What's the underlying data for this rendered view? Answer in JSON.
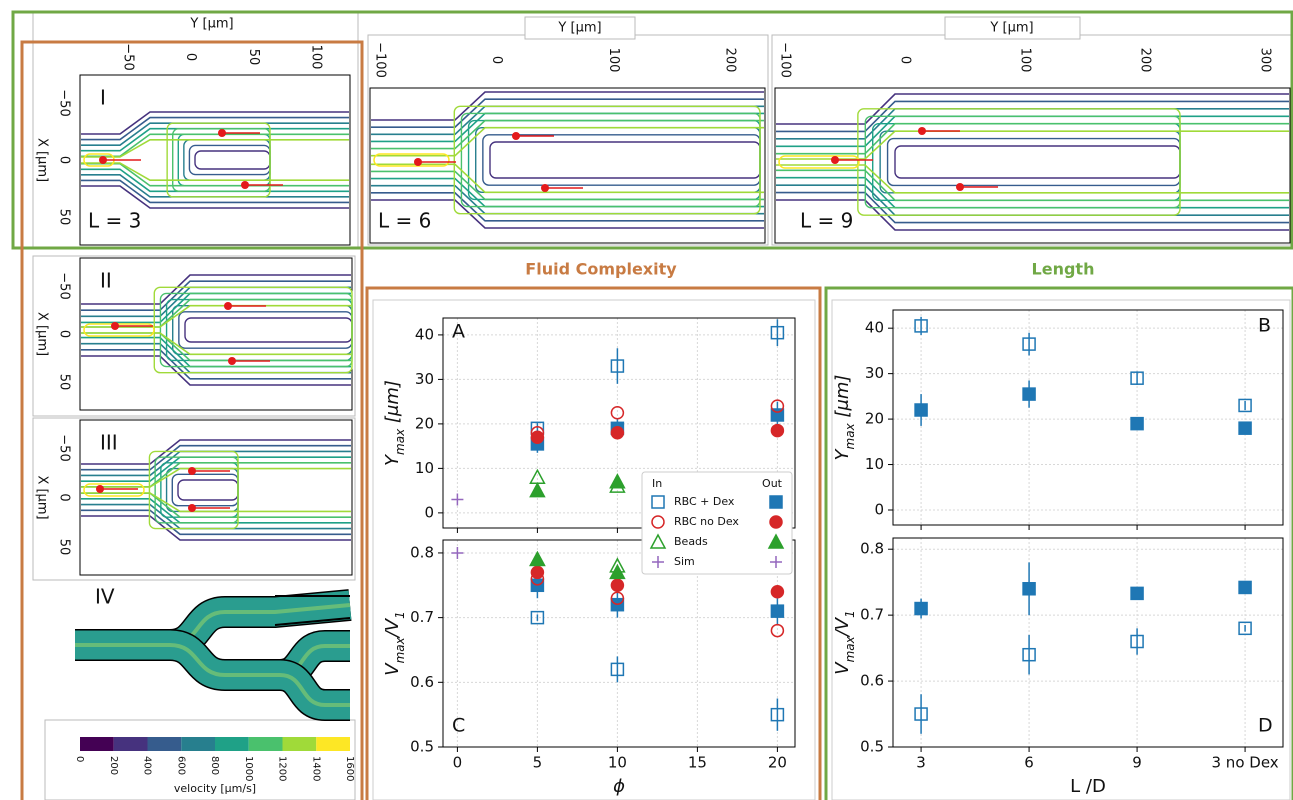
{
  "headings": {
    "fluid": "Fluid Complexity",
    "length": "Length"
  },
  "panels": {
    "I": {
      "label": "I",
      "length": "L = 3",
      "y_axis": "Y [μm]",
      "y_ticks": [
        "−50",
        "0",
        "50",
        "100"
      ],
      "x_axis": "X [μm]",
      "x_ticks": [
        "−50",
        "0",
        "50"
      ]
    },
    "L6": {
      "length": "L = 6",
      "y_axis": "Y [μm]",
      "y_ticks": [
        "−100",
        "0",
        "100",
        "200"
      ]
    },
    "L9": {
      "length": "L = 9",
      "y_axis": "Y [μm]",
      "y_ticks": [
        "−100",
        "0",
        "100",
        "200",
        "300"
      ]
    },
    "II": {
      "label": "II",
      "x_axis": "X [μm]",
      "x_ticks": [
        "−50",
        "0",
        "50"
      ]
    },
    "III": {
      "label": "III",
      "x_axis": "X [μm]",
      "x_ticks": [
        "−50",
        "0",
        "50"
      ]
    },
    "IV": {
      "label": "IV"
    },
    "colorbar": {
      "label": "velocity [μm/s]",
      "ticks": [
        0,
        200,
        400,
        600,
        800,
        1000,
        1200,
        1400,
        1600
      ]
    }
  },
  "chart_data": [
    {
      "type": "scatter",
      "panel": "A",
      "ylabel": [
        "Y",
        "max",
        " [μm]"
      ],
      "x": [
        0,
        5,
        10,
        20
      ],
      "xlim": [
        -0.9,
        21.1
      ],
      "xticks": [
        0,
        5,
        10,
        15,
        20
      ],
      "xtick_labels": false,
      "ylim": [
        -3.4,
        43.8
      ],
      "yticks": [
        0,
        10,
        20,
        30,
        40
      ],
      "grid": true,
      "legend": true,
      "legend_columns": [
        "In",
        "Out"
      ],
      "series": [
        {
          "name": "RBC + Dex",
          "color": "#1f77b4",
          "marker": "square",
          "in_values": [
            null,
            19,
            33,
            40.5
          ],
          "in_errors": [
            null,
            1.5,
            4,
            3
          ],
          "out_values": [
            null,
            15.5,
            19,
            22
          ],
          "out_errors": [
            null,
            2,
            2,
            3
          ]
        },
        {
          "name": "RBC no Dex",
          "color": "#d62728",
          "marker": "circle",
          "in_values": [
            null,
            18,
            22.5,
            24
          ],
          "in_errors": [
            null,
            null,
            null,
            null
          ],
          "out_values": [
            null,
            17,
            18,
            18.5
          ],
          "out_errors": [
            null,
            null,
            null,
            null
          ]
        },
        {
          "name": "Beads",
          "color": "#2ca02c",
          "marker": "triangle",
          "in_values": [
            null,
            8,
            6,
            null
          ],
          "in_errors": [
            null,
            null,
            null,
            null
          ],
          "out_values": [
            null,
            5,
            7,
            null
          ],
          "out_errors": [
            null,
            null,
            null,
            null
          ]
        },
        {
          "name": "Sim",
          "color": "#9467bd",
          "marker": "plus",
          "in_values": [
            3,
            null,
            null,
            null
          ],
          "in_errors": [
            null,
            null,
            null,
            null
          ],
          "out_values": [
            null,
            null,
            null,
            null
          ],
          "out_errors": [
            null,
            null,
            null,
            null
          ]
        }
      ]
    },
    {
      "type": "scatter",
      "panel": "B",
      "ylabel": [
        "Y",
        "max",
        " [μm]"
      ],
      "categories": [
        "3",
        "6",
        "9",
        "3 no Dex"
      ],
      "ylim": [
        -3.3,
        44
      ],
      "yticks": [
        0,
        10,
        20,
        30,
        40
      ],
      "grid": true,
      "xtick_labels": false,
      "series": [
        {
          "name": "RBC + Dex",
          "color": "#1f77b4",
          "marker": "square",
          "in_values": [
            40.5,
            36.5,
            29,
            23
          ],
          "in_errors": [
            2,
            2.5,
            1.5,
            1
          ],
          "out_values": [
            22,
            25.5,
            19,
            18
          ],
          "out_errors": [
            3.5,
            3,
            1,
            1
          ]
        }
      ]
    },
    {
      "type": "scatter",
      "panel": "C",
      "ylabel": [
        "V",
        "max",
        "/V",
        "1"
      ],
      "xlabel": "ϕ",
      "x": [
        0,
        5,
        10,
        20
      ],
      "xlim": [
        -0.9,
        21.1
      ],
      "xticks": [
        0,
        5,
        10,
        15,
        20
      ],
      "ylim": [
        0.5,
        0.82
      ],
      "yticks": [
        0.5,
        0.6,
        0.7,
        0.8
      ],
      "grid": true,
      "series": [
        {
          "name": "RBC + Dex",
          "color": "#1f77b4",
          "marker": "square",
          "in_values": [
            null,
            0.7,
            0.62,
            0.55
          ],
          "in_errors": [
            null,
            0.005,
            0.02,
            0.025
          ],
          "out_values": [
            null,
            0.75,
            0.72,
            0.71
          ],
          "out_errors": [
            null,
            0.02,
            0.02,
            0.02
          ]
        },
        {
          "name": "RBC no Dex",
          "color": "#d62728",
          "marker": "circle",
          "in_values": [
            null,
            0.76,
            0.73,
            0.68
          ],
          "in_errors": [
            null,
            null,
            null,
            null
          ],
          "out_values": [
            null,
            0.77,
            0.75,
            0.74
          ],
          "out_errors": [
            null,
            null,
            null,
            null
          ]
        },
        {
          "name": "Beads",
          "color": "#2ca02c",
          "marker": "triangle",
          "in_values": [
            null,
            0.79,
            0.78,
            null
          ],
          "in_errors": [
            null,
            null,
            null,
            null
          ],
          "out_values": [
            null,
            0.79,
            0.77,
            null
          ],
          "out_errors": [
            null,
            null,
            null,
            null
          ]
        },
        {
          "name": "Sim",
          "color": "#9467bd",
          "marker": "plus",
          "in_values": [
            0.8,
            null,
            null,
            null
          ],
          "in_errors": [
            null,
            null,
            null,
            null
          ],
          "out_values": [
            null,
            null,
            null,
            null
          ],
          "out_errors": [
            null,
            null,
            null,
            null
          ]
        }
      ]
    },
    {
      "type": "scatter",
      "panel": "D",
      "ylabel": [
        "V",
        "max",
        "/V",
        "1"
      ],
      "xlabel": "L /D",
      "categories": [
        "3",
        "6",
        "9",
        "3 no Dex"
      ],
      "ylim": [
        0.5,
        0.817
      ],
      "yticks": [
        0.5,
        0.6,
        0.7,
        0.8
      ],
      "grid": true,
      "series": [
        {
          "name": "RBC + Dex",
          "color": "#1f77b4",
          "marker": "square",
          "in_values": [
            0.55,
            0.64,
            0.66,
            0.68
          ],
          "in_errors": [
            0.03,
            0.03,
            0.02,
            0.005
          ],
          "out_values": [
            0.71,
            0.74,
            0.733,
            0.742
          ],
          "out_errors": [
            0.015,
            0.04,
            0.005,
            0.01
          ]
        }
      ]
    }
  ]
}
